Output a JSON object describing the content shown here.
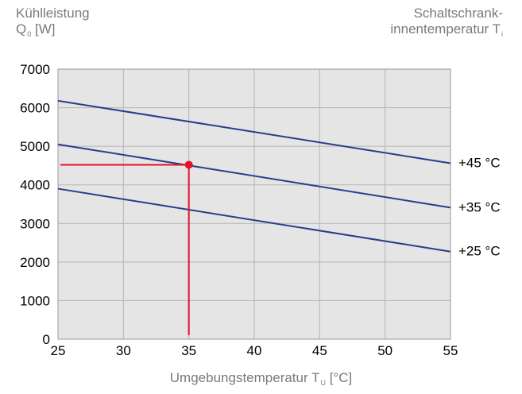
{
  "chart_data": {
    "type": "line",
    "yaxis_title": {
      "line1": "Kühlleistung",
      "line2_main": "Q",
      "line2_sub": "0",
      "line2_unit": "[W]"
    },
    "legend_title": {
      "line1": "Schaltschrank-",
      "line2_main": "innentemperatur T",
      "line2_sub": "i"
    },
    "xaxis_title": {
      "main": "Umgebungstemperatur T",
      "sub": "U",
      "unit": "[°C]"
    },
    "x_ticks": [
      "25",
      "30",
      "35",
      "40",
      "45",
      "50",
      "55"
    ],
    "y_ticks": [
      "0",
      "1000",
      "2000",
      "3000",
      "4000",
      "5000",
      "6000",
      "7000"
    ],
    "xlim": [
      25,
      55
    ],
    "ylim": [
      0,
      7000
    ],
    "grid": true,
    "series": [
      {
        "name": "+45 °C",
        "x": [
          25,
          55
        ],
        "y": [
          6180,
          4560
        ]
      },
      {
        "name": "+35 °C",
        "x": [
          25,
          55
        ],
        "y": [
          5050,
          3410
        ]
      },
      {
        "name": "+25 °C",
        "x": [
          25,
          55
        ],
        "y": [
          3900,
          2270
        ]
      }
    ],
    "marker": {
      "x": 35,
      "y": 4520
    },
    "colors": {
      "plot_bg": "#e5e5e5",
      "grid": "#b5b5b5",
      "series": "#2a3d8c",
      "marker": "#e1122a",
      "axis_text": "#000000",
      "title_text": "#7a7a7a"
    }
  }
}
